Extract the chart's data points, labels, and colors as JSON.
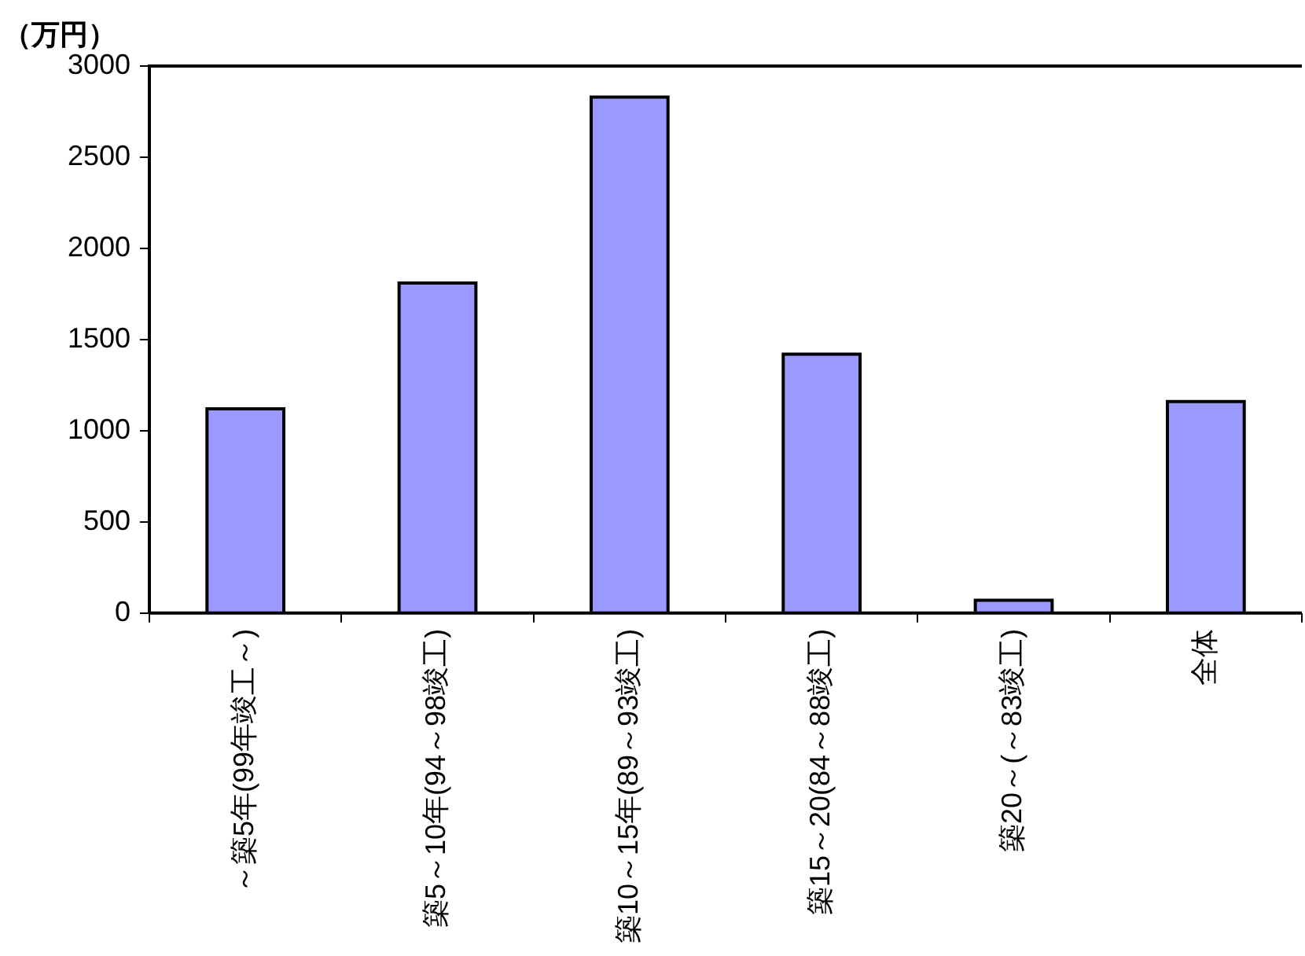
{
  "chart_data": {
    "type": "bar",
    "ylabel": "（万円）",
    "categories": [
      "～築5年(99年竣工～)",
      "築5～10年(94～98竣工)",
      "築10～15年(89～93竣工)",
      "築15～20(84～88竣工)",
      "築20～(～83竣工)",
      "全体"
    ],
    "values": [
      1120,
      1810,
      2830,
      1420,
      70,
      1160
    ],
    "color": "#9999ff",
    "ylim": [
      0,
      3000
    ],
    "yticks": [
      0,
      500,
      1000,
      1500,
      2000,
      2500,
      3000
    ],
    "grid": false,
    "legend": false
  }
}
